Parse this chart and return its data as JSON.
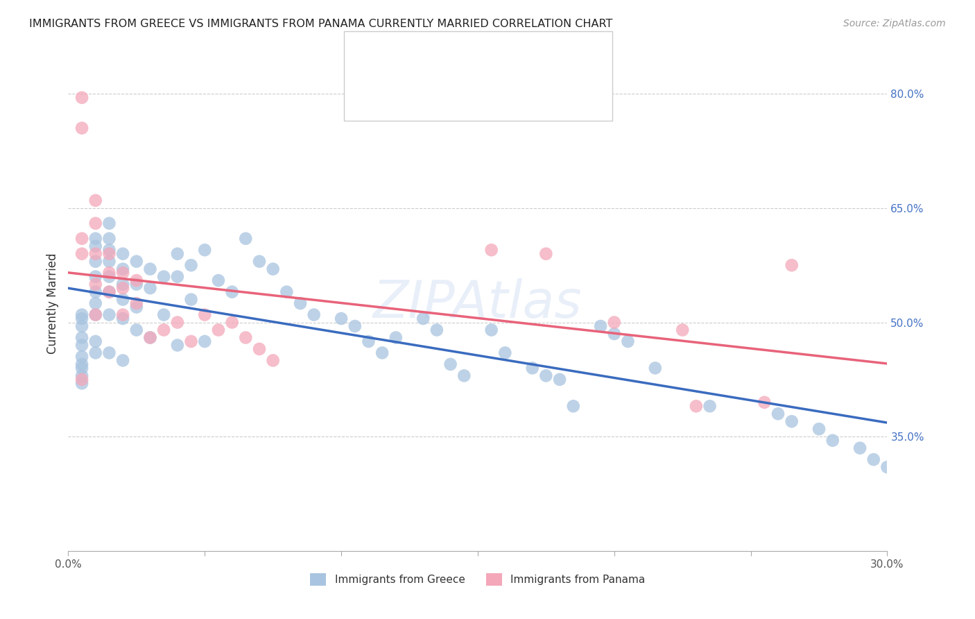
{
  "title": "IMMIGRANTS FROM GREECE VS IMMIGRANTS FROM PANAMA CURRENTLY MARRIED CORRELATION CHART",
  "source": "Source: ZipAtlas.com",
  "ylabel": "Currently Married",
  "legend_label_blue": "Immigrants from Greece",
  "legend_label_pink": "Immigrants from Panama",
  "blue_color": "#a8c4e0",
  "pink_color": "#f4a7b9",
  "blue_line_color": "#3a6bbf",
  "pink_line_color": "#e8637a",
  "xlim": [
    0.0,
    0.3
  ],
  "ylim": [
    0.2,
    0.85
  ],
  "blue_scatter_x": [
    0.005,
    0.005,
    0.005,
    0.005,
    0.005,
    0.005,
    0.005,
    0.005,
    0.005,
    0.005,
    0.01,
    0.01,
    0.01,
    0.01,
    0.01,
    0.01,
    0.01,
    0.01,
    0.01,
    0.015,
    0.015,
    0.015,
    0.015,
    0.015,
    0.015,
    0.015,
    0.015,
    0.02,
    0.02,
    0.02,
    0.02,
    0.02,
    0.02,
    0.025,
    0.025,
    0.025,
    0.025,
    0.03,
    0.03,
    0.03,
    0.035,
    0.035,
    0.04,
    0.04,
    0.04,
    0.045,
    0.045,
    0.05,
    0.05,
    0.055,
    0.06,
    0.065,
    0.07,
    0.075,
    0.08,
    0.085,
    0.09,
    0.1,
    0.105,
    0.11,
    0.115,
    0.12,
    0.13,
    0.135,
    0.14,
    0.145,
    0.155,
    0.16,
    0.17,
    0.175,
    0.18,
    0.185,
    0.195,
    0.2,
    0.205,
    0.215,
    0.235,
    0.26,
    0.265,
    0.275,
    0.28,
    0.29,
    0.295,
    0.3
  ],
  "blue_scatter_y": [
    0.495,
    0.505,
    0.51,
    0.48,
    0.47,
    0.455,
    0.445,
    0.44,
    0.43,
    0.42,
    0.61,
    0.6,
    0.58,
    0.56,
    0.54,
    0.525,
    0.51,
    0.475,
    0.46,
    0.63,
    0.61,
    0.595,
    0.58,
    0.56,
    0.54,
    0.51,
    0.46,
    0.59,
    0.57,
    0.55,
    0.53,
    0.505,
    0.45,
    0.58,
    0.55,
    0.52,
    0.49,
    0.57,
    0.545,
    0.48,
    0.56,
    0.51,
    0.59,
    0.56,
    0.47,
    0.575,
    0.53,
    0.595,
    0.475,
    0.555,
    0.54,
    0.61,
    0.58,
    0.57,
    0.54,
    0.525,
    0.51,
    0.505,
    0.495,
    0.475,
    0.46,
    0.48,
    0.505,
    0.49,
    0.445,
    0.43,
    0.49,
    0.46,
    0.44,
    0.43,
    0.425,
    0.39,
    0.495,
    0.485,
    0.475,
    0.44,
    0.39,
    0.38,
    0.37,
    0.36,
    0.345,
    0.335,
    0.32,
    0.31
  ],
  "pink_scatter_x": [
    0.005,
    0.005,
    0.005,
    0.005,
    0.005,
    0.01,
    0.01,
    0.01,
    0.01,
    0.01,
    0.015,
    0.015,
    0.015,
    0.02,
    0.02,
    0.02,
    0.025,
    0.025,
    0.03,
    0.035,
    0.04,
    0.045,
    0.05,
    0.055,
    0.06,
    0.065,
    0.07,
    0.075,
    0.155,
    0.175,
    0.2,
    0.225,
    0.23,
    0.255,
    0.265
  ],
  "pink_scatter_y": [
    0.795,
    0.755,
    0.61,
    0.59,
    0.425,
    0.66,
    0.63,
    0.59,
    0.55,
    0.51,
    0.59,
    0.565,
    0.54,
    0.565,
    0.545,
    0.51,
    0.555,
    0.525,
    0.48,
    0.49,
    0.5,
    0.475,
    0.51,
    0.49,
    0.5,
    0.48,
    0.465,
    0.45,
    0.595,
    0.59,
    0.5,
    0.49,
    0.39,
    0.395,
    0.575
  ]
}
